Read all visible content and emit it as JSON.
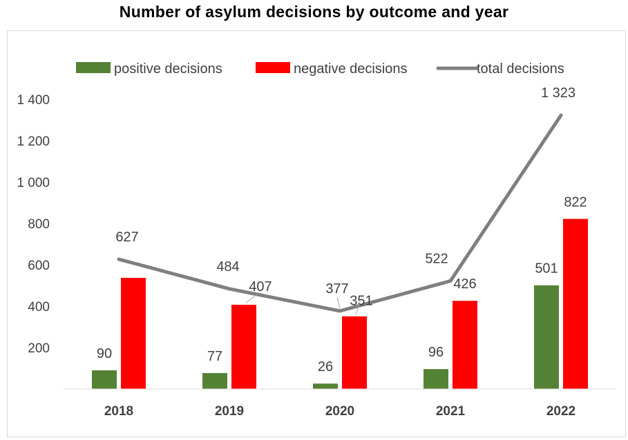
{
  "title": "Number of asylum decisions by outcome and year",
  "colors": {
    "positive": "#548235",
    "negative": "#ff0000",
    "total": "#7f7f7f"
  },
  "chart_data": {
    "type": "bar",
    "title": "Number of asylum decisions by outcome and year",
    "categories": [
      "2018",
      "2019",
      "2020",
      "2021",
      "2022"
    ],
    "series": [
      {
        "name": "positive decisions",
        "type": "bar",
        "values": [
          90,
          77,
          26,
          96,
          501
        ],
        "labels": [
          "90",
          "77",
          "26",
          "96",
          "501"
        ]
      },
      {
        "name": "negative decisions",
        "type": "bar",
        "values": [
          537,
          407,
          351,
          426,
          822
        ],
        "labels": [
          "",
          "407",
          "351",
          "426",
          "822"
        ]
      },
      {
        "name": "total decisions",
        "type": "line",
        "values": [
          627,
          484,
          377,
          522,
          1323
        ],
        "labels": [
          "627",
          "484",
          "377",
          "522",
          "1 323"
        ]
      }
    ],
    "yticks": [
      200,
      400,
      600,
      800,
      1000,
      1200,
      1400
    ],
    "ytick_labels": [
      "200",
      "400",
      "600",
      "800",
      "1 000",
      "1 200",
      "1 400"
    ],
    "ylim": [
      0,
      1400
    ],
    "legend_position": "top",
    "grid": false
  }
}
